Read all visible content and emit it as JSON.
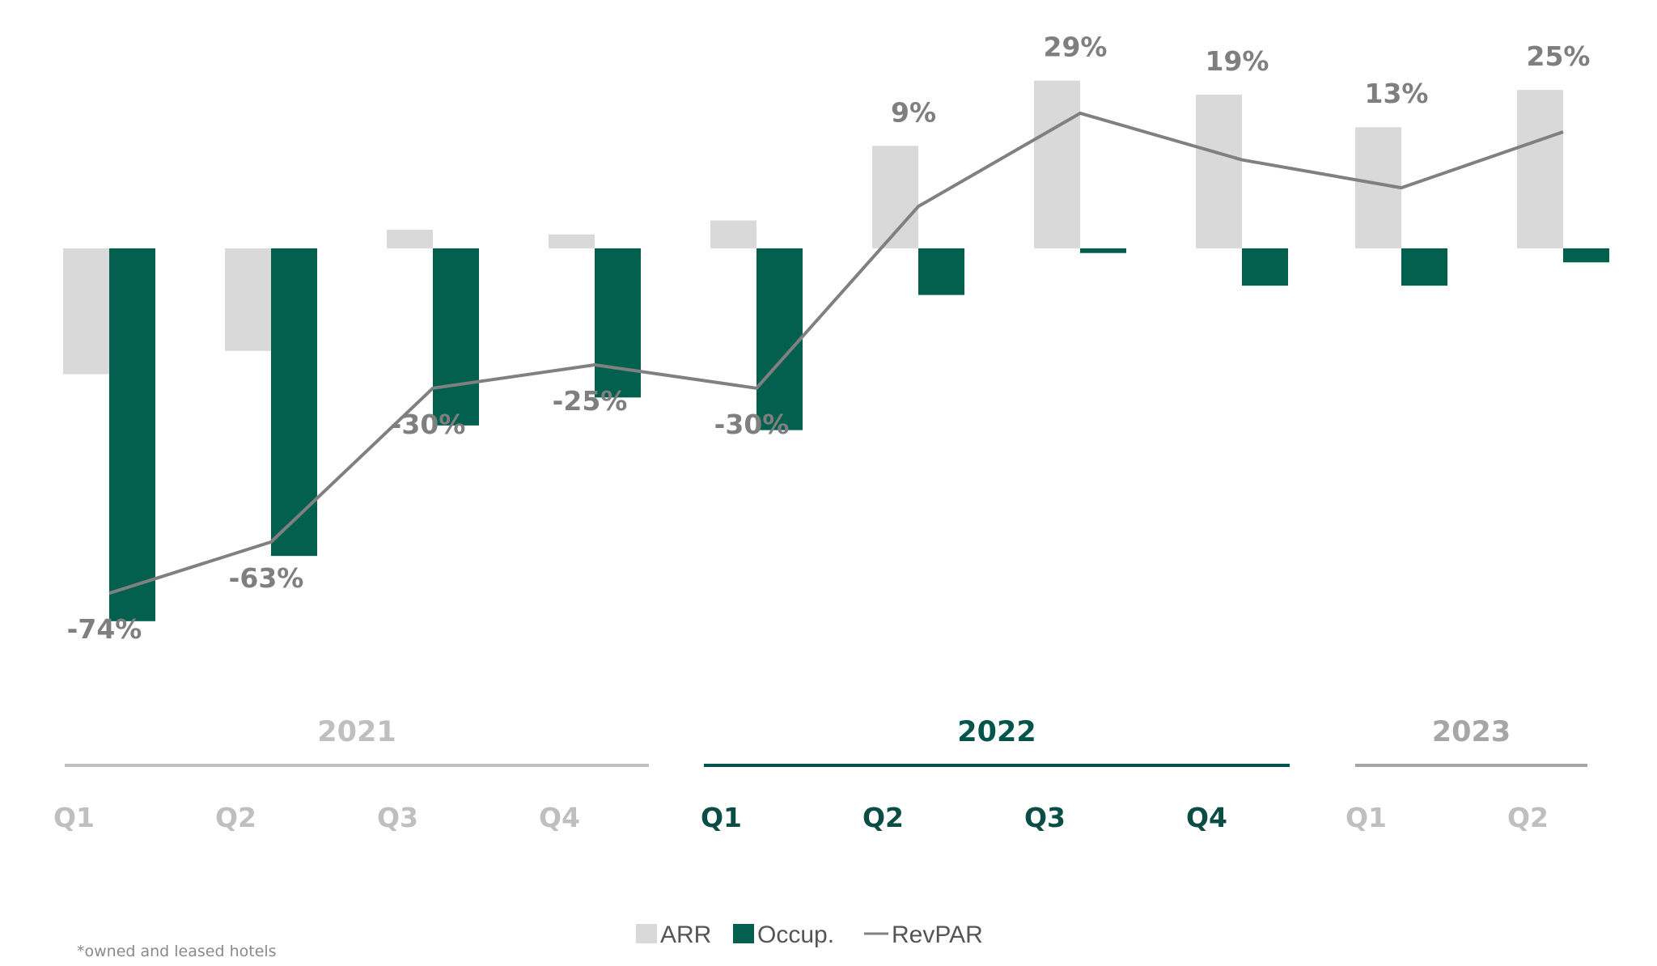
{
  "chart_data": {
    "type": "bar",
    "groups": [
      {
        "year": "2021",
        "quarters": [
          "Q1",
          "Q2",
          "Q3",
          "Q4"
        ]
      },
      {
        "year": "2022",
        "quarters": [
          "Q1",
          "Q2",
          "Q3",
          "Q4"
        ]
      },
      {
        "year": "2023",
        "quarters": [
          "Q1",
          "Q2"
        ]
      }
    ],
    "categories": [
      "2021 Q1",
      "2021 Q2",
      "2021 Q3",
      "2021 Q4",
      "2022 Q1",
      "2022 Q2",
      "2022 Q3",
      "2022 Q4",
      "2023 Q1",
      "2023 Q2"
    ],
    "series": [
      {
        "name": "ARR",
        "kind": "bar",
        "color": "#d9d9d9",
        "values": [
          -27,
          -22,
          4,
          3,
          6,
          22,
          36,
          33,
          26,
          34
        ]
      },
      {
        "name": "Occup.",
        "kind": "bar",
        "color": "#03604f",
        "values": [
          -80,
          -66,
          -38,
          -32,
          -39,
          -10,
          -1,
          -8,
          -8,
          -3
        ]
      },
      {
        "name": "RevPAR",
        "kind": "line",
        "color": "#808080",
        "values": [
          -74,
          -63,
          -30,
          -25,
          -30,
          9,
          29,
          19,
          13,
          25
        ]
      }
    ],
    "data_labels": [
      "-74%",
      "-63%",
      "-30%",
      "-25%",
      "-30%",
      "9%",
      "29%",
      "19%",
      "13%",
      "25%"
    ],
    "ylim": [
      -80,
      37
    ],
    "grid": false,
    "legend_position": "bottom-center",
    "highlight_group": "2022",
    "colors": {
      "muted": "#bfbfbf",
      "highlight": "#03554c",
      "dark_quarter": "#094d45",
      "year_2023": "#a6a6a6"
    }
  },
  "legend": [
    "ARR",
    "Occup.",
    "RevPAR"
  ],
  "footnote": "*owned and leased hotels"
}
